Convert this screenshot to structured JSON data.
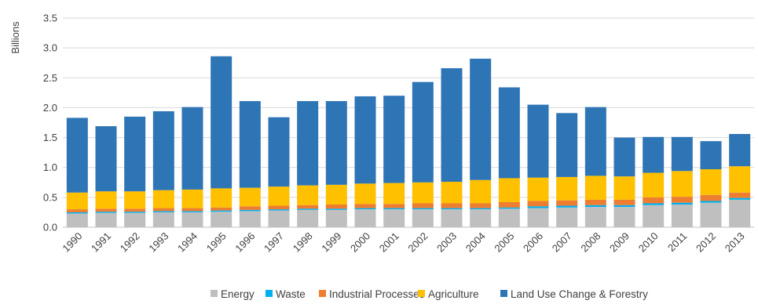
{
  "chart_data": {
    "type": "bar",
    "stacked": true,
    "title": "",
    "xlabel": "",
    "ylabel": "Billions",
    "ylim": [
      0,
      3.5
    ],
    "yticks": [
      "0.0",
      "0.5",
      "1.0",
      "1.5",
      "2.0",
      "2.5",
      "3.0",
      "3.5"
    ],
    "grid": true,
    "legend_position": "bottom",
    "categories": [
      "1990",
      "1991",
      "1992",
      "1993",
      "1994",
      "1995",
      "1996",
      "1997",
      "1998",
      "1999",
      "2000",
      "2001",
      "2002",
      "2003",
      "2004",
      "2005",
      "2006",
      "2007",
      "2008",
      "2009",
      "2010",
      "2011",
      "2012",
      "2013"
    ],
    "series": [
      {
        "name": "Energy",
        "color": "#bfbfbf",
        "values": [
          0.23,
          0.24,
          0.24,
          0.25,
          0.25,
          0.26,
          0.27,
          0.28,
          0.29,
          0.29,
          0.3,
          0.3,
          0.3,
          0.3,
          0.3,
          0.31,
          0.32,
          0.33,
          0.34,
          0.34,
          0.37,
          0.38,
          0.41,
          0.46
        ]
      },
      {
        "name": "Waste",
        "color": "#00b0f0",
        "values": [
          0.02,
          0.02,
          0.02,
          0.02,
          0.02,
          0.02,
          0.02,
          0.02,
          0.02,
          0.02,
          0.02,
          0.02,
          0.02,
          0.02,
          0.02,
          0.02,
          0.03,
          0.03,
          0.03,
          0.03,
          0.03,
          0.03,
          0.03,
          0.03
        ]
      },
      {
        "name": "Industrial Processes",
        "color": "#ed7d31",
        "values": [
          0.05,
          0.05,
          0.05,
          0.05,
          0.05,
          0.05,
          0.06,
          0.06,
          0.06,
          0.07,
          0.07,
          0.07,
          0.08,
          0.08,
          0.08,
          0.09,
          0.09,
          0.09,
          0.09,
          0.09,
          0.1,
          0.1,
          0.1,
          0.09
        ]
      },
      {
        "name": "Agriculture",
        "color": "#ffc000",
        "values": [
          0.28,
          0.29,
          0.29,
          0.3,
          0.31,
          0.32,
          0.31,
          0.32,
          0.33,
          0.33,
          0.34,
          0.35,
          0.35,
          0.36,
          0.39,
          0.4,
          0.39,
          0.39,
          0.4,
          0.39,
          0.41,
          0.43,
          0.43,
          0.44
        ]
      },
      {
        "name": "Land Use Change & Forestry",
        "color": "#2e75b6",
        "values": [
          1.25,
          1.09,
          1.25,
          1.32,
          1.38,
          2.21,
          1.45,
          1.16,
          1.41,
          1.4,
          1.46,
          1.46,
          1.68,
          1.9,
          2.03,
          1.52,
          1.22,
          1.07,
          1.15,
          0.65,
          0.6,
          0.57,
          0.47,
          0.54
        ]
      }
    ]
  }
}
